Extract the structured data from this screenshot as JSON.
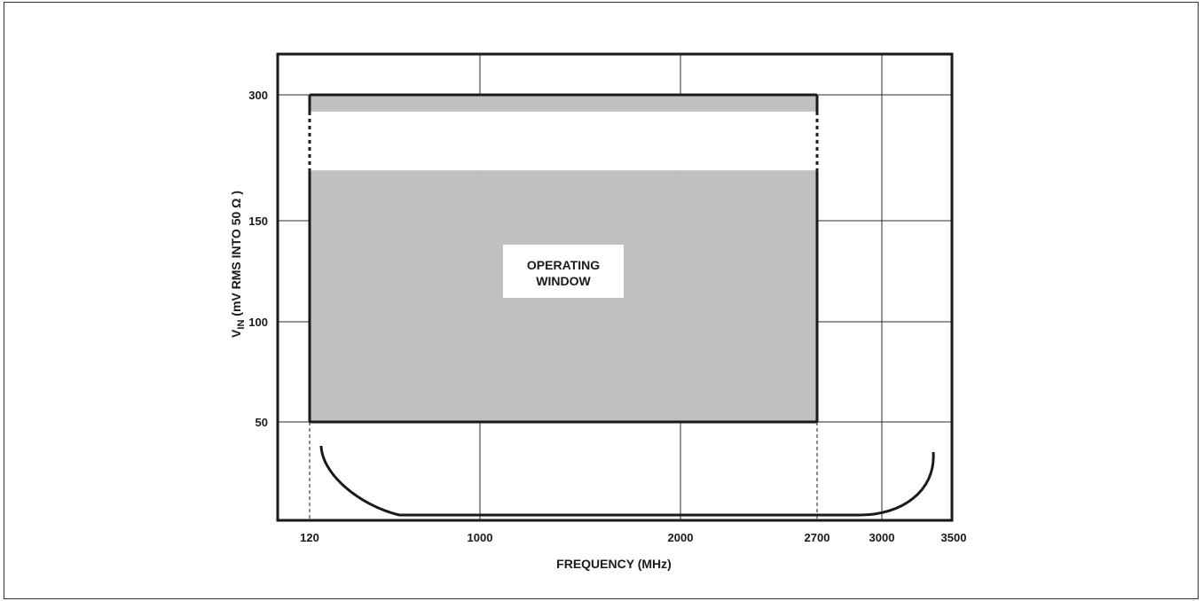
{
  "chart_data": {
    "type": "area",
    "title": "",
    "xlabel": "FREQUENCY (MHz)",
    "ylabel_main": "V",
    "ylabel_sub": "IN",
    "ylabel_rest": " (mV RMS INTO 50 Ω )",
    "x_ticks": [
      120,
      1000,
      2000,
      2700,
      3000,
      3500
    ],
    "x_tick_labels": [
      "120",
      "1000",
      "2000",
      "2700",
      "3000",
      "3500"
    ],
    "y_ticks": [
      50,
      100,
      150,
      300
    ],
    "y_tick_labels": [
      "50",
      "100",
      "150",
      "300"
    ],
    "grid": true,
    "operating_window": {
      "label_lines": [
        "OPERATING",
        "WINDOW"
      ],
      "x_range": [
        120,
        2700
      ],
      "y_range": [
        50,
        300
      ],
      "excluded_band_y": [
        210,
        280
      ]
    },
    "colors": {
      "window_fill": "#c0c0c0",
      "line": "#1a1a1a",
      "grid": "#2a2a2a"
    }
  }
}
